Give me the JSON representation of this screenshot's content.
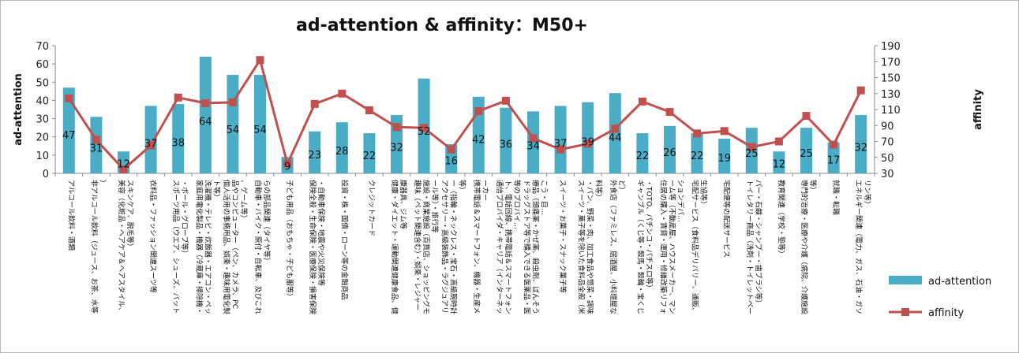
{
  "chart_data": {
    "type": "bar+line",
    "title": "ad-attention & affinity：M50+",
    "ylabel_left": "ad-attention",
    "ylabel_right": "affinity",
    "ylim_left": [
      0,
      70
    ],
    "ylim_right": [
      30,
      190
    ],
    "yticks_left": [
      "0",
      "10",
      "20",
      "30",
      "40",
      "50",
      "60",
      "70"
    ],
    "yticks_right": [
      "30",
      "50",
      "70",
      "90",
      "110",
      "130",
      "150",
      "170",
      "190"
    ],
    "categories": [
      "アルコール飲料・酒類",
      "非アルコール飲料（ジュース、お茶、水等）",
      "美容（化粧品・ヘアケア＆ヘアスタイル、スキンケア、脱毛等）",
      "衣料品・ファッション関連スーツ等",
      "スポーツ用品（ウエア、シューズ、バット・ボール・グローブ等）",
      "家庭用電化製品・機器（冷蔵庫・掃除機・洗濯機・テレビ・炊飯器・エアコン・ペット等）",
      "個人活用の事務用品、娯楽・趣味用電化製品やコンピューター（ペン、カメラ、PC、ゲーム等）",
      "自動車・バイク・原付・自転車、及びこれらの部品関連（タイヤ等）",
      "子ども用品（おもちゃ・子ども服等）",
      "保険全般・生命保険・医療保険・損害保険・自動車保険・地震や火災保険等",
      "投資・株・国債・ローン等の金融商品",
      "クレジットカード",
      "健康・ダイエット・運動関連健康食品、健康器具、ジム等",
      "趣味（ペット関連含む）・娯楽・レジャー施設・商業施設（百貨店、ショッピングモール等）・旅行等",
      "アクセサリー・高級装飾品・ラグジュアリー（指輪・ネックレス・宝石・高級腕時計等）",
      "携帯電話＆スマートフォン、機器・生産メーカー",
      "通信プロバイダ・キャリア（インターネット、電話回線、携帯電話＆スマートフォン等のプロバイ…",
      "ドラッグストア等で購入できる医薬品・医療品（頭痛薬・かぜ薬、殺虫剤、ばんそうこう・目…",
      "スイーツ・お菓子・スナック菓子等",
      "スイーツ・菓子等を除いた食料品全般（米・パン、野菜・肉、加工食品や惣菜・調味料等）",
      "外食店（ファミレス、居酒屋、小料理屋など）",
      "ギャンブル（くじ等・競馬・競輪・宝くじ・TOTO、パチンコ・パチスロ等）",
      "住居の購入・賃貸・運用・修繕改築リフォーム等（不動産屋、ハウスメーカー、マンションデパ…",
      "宅配サービス（食料品デリバリー、通販、生協等）",
      "宅配便等の配送サービス",
      "トイレタリー商品（洗剤・トイレットペーパー・石鹸・シャンプー・歯ブラシ等）",
      "教育関連（学校・塾等）",
      "専門的治療・医療や介護（病院、介護施設等）",
      "就職・転職",
      "エネルギー関連（電力、ガス、石油・ガソリン等）"
    ],
    "series": [
      {
        "name": "ad-attention",
        "kind": "bar",
        "axis": "left",
        "color": "#4bacc6",
        "values": [
          47,
          31,
          12,
          37,
          38,
          64,
          54,
          54,
          9,
          23,
          28,
          22,
          32,
          52,
          16,
          42,
          36,
          34,
          37,
          39,
          44,
          22,
          26,
          22,
          19,
          25,
          12,
          25,
          17,
          32
        ]
      },
      {
        "name": "affinity",
        "kind": "line",
        "axis": "right",
        "color": "#c0504d",
        "values": [
          124,
          72,
          35,
          65,
          125,
          118,
          119,
          172,
          42,
          117,
          130,
          109,
          88,
          87,
          60,
          108,
          121,
          74,
          60,
          67,
          86,
          120,
          107,
          80,
          83,
          63,
          70,
          102,
          66,
          134
        ]
      }
    ],
    "data_labels": [
      "47",
      "31",
      "12",
      "37",
      "38",
      "64",
      "54",
      "54",
      "9",
      "23",
      "28",
      "22",
      "32",
      "52",
      "16",
      "42",
      "36",
      "34",
      "37",
      "39",
      "44",
      "22",
      "26",
      "22",
      "19",
      "25",
      "12",
      "25",
      "17",
      "32"
    ],
    "legend": {
      "position": "right",
      "items": [
        "ad-attention",
        "affinity"
      ]
    },
    "grid": false
  }
}
